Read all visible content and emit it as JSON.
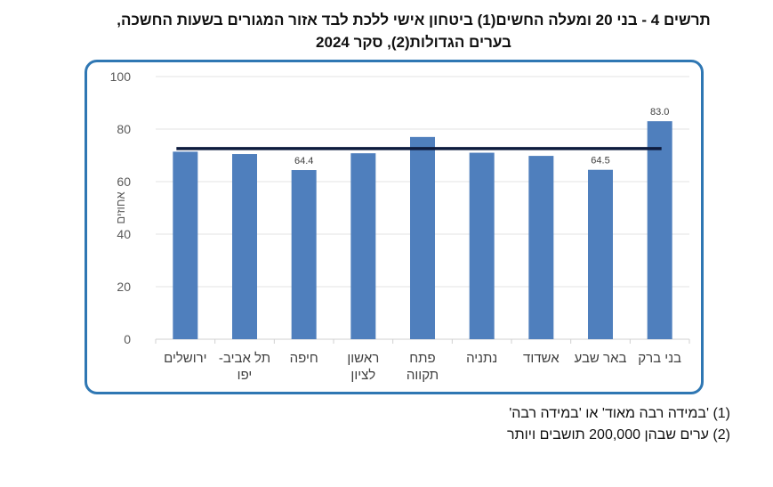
{
  "title": {
    "line1": "תרשים 4 - בני 20 ומעלה החשים(1) ביטחון אישי ללכת לבד אזור המגורים בשעות החשכה,",
    "line2": "בערים הגדולות(2), סקר 2024"
  },
  "footnotes": [
    "(1) 'במידה רבה מאוד' או 'במידה רבה'",
    "(2) ערים שבהן 200,000 תושבים ויותר"
  ],
  "chart_data": {
    "type": "bar",
    "categories": [
      [
        "ירושלים"
      ],
      [
        "תל אביב-",
        "יפו"
      ],
      [
        "חיפה"
      ],
      [
        "ראשון",
        "לציון"
      ],
      [
        "פתח",
        "תקווה"
      ],
      [
        "נתניה"
      ],
      [
        "אשדוד"
      ],
      [
        "באר שבע"
      ],
      [
        "בני ברק"
      ]
    ],
    "values": [
      71.4,
      70.5,
      64.4,
      70.8,
      77.0,
      71.0,
      69.8,
      64.5,
      83.0
    ],
    "data_labels": [
      "",
      "",
      "64.4",
      "",
      "",
      "",
      "",
      "64.5",
      "83.0"
    ],
    "reference_line": 72.6,
    "ylabel": "אחוזים",
    "ylim": [
      0,
      100
    ],
    "yticks": [
      "0",
      "20",
      "40",
      "60",
      "80",
      "100"
    ],
    "grid": true,
    "colors": {
      "bar": "#4f7fbd",
      "reference_line": "#0d1b3e",
      "frame": "#2f77b3"
    }
  }
}
